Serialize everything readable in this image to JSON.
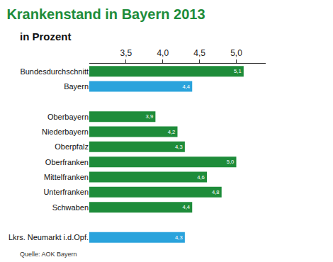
{
  "chart_data": {
    "type": "bar",
    "orientation": "horizontal",
    "title": "Krankenstand in Bayern 2013",
    "subtitle": "in Prozent",
    "annotations": [
      "Quelle: AOK Bayern"
    ],
    "categories": [
      "Bundesdurchschnitt",
      "Bayern",
      null,
      "Oberbayern",
      "Niederbayern",
      "Oberpfalz",
      "Oberfranken",
      "Mittelfranken",
      "Unterfranken",
      "Schwaben",
      null,
      "Lkrs. Neumarkt i.d.Opf."
    ],
    "values": [
      5.1,
      4.4,
      null,
      3.9,
      4.2,
      4.3,
      5.0,
      4.6,
      4.8,
      4.4,
      null,
      4.3
    ],
    "value_labels": [
      "5,1",
      "4,4",
      null,
      "3,9",
      "4,2",
      "4,3",
      "5,0",
      "4,6",
      "4,8",
      "4,4",
      null,
      "4,3"
    ],
    "colors": [
      "#1e8c3a",
      "#2aa3dc",
      null,
      "#1e8c3a",
      "#1e8c3a",
      "#1e8c3a",
      "#1e8c3a",
      "#1e8c3a",
      "#1e8c3a",
      "#1e8c3a",
      null,
      "#2aa3dc"
    ],
    "data_labels": true,
    "xlim": [
      3.0,
      5.4
    ],
    "xticks": [
      {
        "value": 3.5,
        "label": "3,5"
      },
      {
        "value": 4.0,
        "label": "4,0"
      },
      {
        "value": 4.5,
        "label": "4,5"
      },
      {
        "value": 5.0,
        "label": "5,0"
      }
    ],
    "grid": false
  }
}
